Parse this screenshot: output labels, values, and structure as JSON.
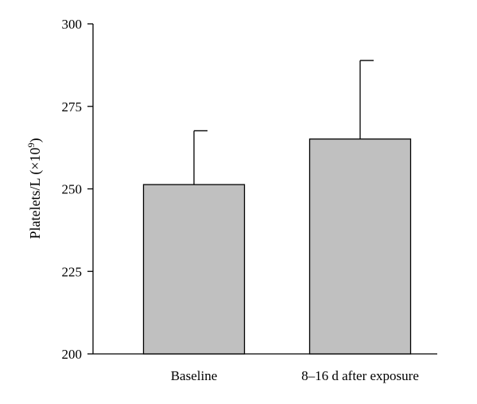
{
  "chart_data": {
    "type": "bar",
    "categories": [
      "Baseline",
      "8–16 d after exposure"
    ],
    "values": [
      251.3,
      265.1
    ],
    "error_upper": [
      267.6,
      288.9
    ],
    "xlabel": "",
    "ylabel": "Platelets/L (×10",
    "ylabel_superscript": "9",
    "ylabel_suffix": ")",
    "ylim": [
      200,
      300
    ],
    "yticks": [
      200,
      225,
      250,
      275,
      300
    ],
    "grid": false,
    "bar_color": "#c0c0c0",
    "edge_color": "#000000"
  }
}
